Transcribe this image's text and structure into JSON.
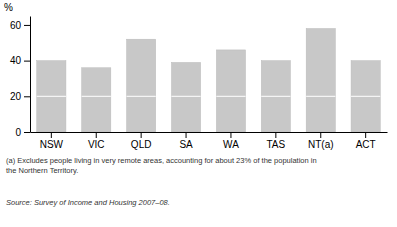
{
  "chart_data": {
    "type": "bar",
    "categories": [
      "NSW",
      "VIC",
      "QLD",
      "SA",
      "WA",
      "TAS",
      "NT(a)",
      "ACT"
    ],
    "values": [
      40,
      36,
      52,
      39,
      46,
      40,
      58,
      40
    ],
    "color": "#c8c8c8",
    "divider_value": 20,
    "ylim": [
      0,
      65
    ],
    "yticks": [
      0,
      20,
      40,
      60
    ],
    "ylabel": "%",
    "footnote": "(a) Excludes people living in very remote areas, accounting for about 23% of the population in\nthe Northern Territory.",
    "source": "Source: Survey of Income and Housing 2007–08."
  }
}
